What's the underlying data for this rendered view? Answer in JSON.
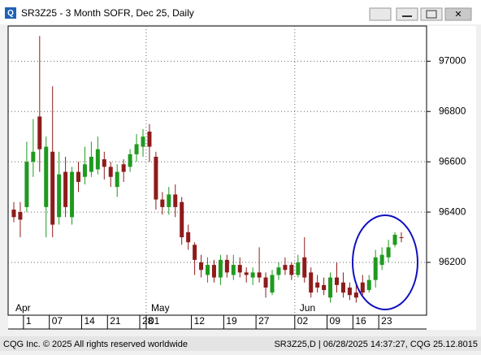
{
  "chart_data": {
    "type": "candlestick",
    "title": "SR3Z25 - 3 Month SOFR, Dec 25, Daily",
    "categories": [
      null,
      null,
      "1",
      null,
      null,
      null,
      "07",
      null,
      null,
      null,
      null,
      "14",
      null,
      null,
      null,
      "21",
      null,
      null,
      null,
      null,
      "28",
      "01",
      null,
      null,
      null,
      null,
      null,
      null,
      "12",
      null,
      null,
      null,
      null,
      "19",
      null,
      null,
      null,
      null,
      "27",
      null,
      null,
      null,
      null,
      null,
      "02",
      null,
      null,
      null,
      null,
      "09",
      null,
      null,
      null,
      "16",
      null,
      null,
      null,
      "23",
      null,
      null,
      null
    ],
    "months": [
      "Apr",
      null,
      null,
      null,
      null,
      null,
      null,
      null,
      null,
      null,
      null,
      null,
      null,
      null,
      null,
      null,
      null,
      null,
      null,
      null,
      null,
      "May",
      null,
      null,
      null,
      null,
      null,
      null,
      null,
      null,
      null,
      null,
      null,
      null,
      null,
      null,
      null,
      null,
      null,
      null,
      null,
      null,
      null,
      null,
      "Jun",
      null,
      null,
      null,
      null,
      null,
      null,
      null,
      null,
      null,
      null,
      null,
      null,
      null,
      null,
      null,
      null
    ],
    "open": [
      96410,
      96400,
      96420,
      96600,
      96780,
      96420,
      96640,
      96380,
      96560,
      96380,
      96560,
      96540,
      96560,
      96570,
      96610,
      96580,
      96500,
      96590,
      96580,
      96630,
      96660,
      96720,
      96620,
      96450,
      96420,
      96470,
      96440,
      96320,
      96270,
      96200,
      96150,
      96190,
      96140,
      96210,
      96150,
      96190,
      96160,
      96140,
      96160,
      96140,
      96080,
      96150,
      96190,
      96190,
      96150,
      96220,
      96160,
      96120,
      96110,
      96060,
      96140,
      96120,
      96100,
      96080,
      96120,
      96090,
      96130,
      96190,
      96220,
      96270,
      96300
    ],
    "high": [
      96440,
      96440,
      96680,
      96770,
      97100,
      96700,
      96900,
      96640,
      96620,
      96580,
      96600,
      96660,
      96680,
      96700,
      96640,
      96600,
      96590,
      96610,
      96650,
      96710,
      96730,
      96750,
      96640,
      96480,
      96500,
      96510,
      96460,
      96350,
      96280,
      96230,
      96220,
      96210,
      96230,
      96230,
      96230,
      96220,
      96180,
      96180,
      96260,
      96160,
      96170,
      96200,
      96220,
      96200,
      96230,
      96300,
      96180,
      96150,
      96140,
      96160,
      96200,
      96160,
      96120,
      96110,
      96150,
      96150,
      96250,
      96260,
      96290,
      96320,
      96320
    ],
    "low": [
      96360,
      96300,
      96400,
      96540,
      96560,
      96300,
      96300,
      96350,
      96380,
      96350,
      96480,
      96510,
      96540,
      96550,
      96530,
      96500,
      96460,
      96520,
      96560,
      96600,
      96620,
      96600,
      96410,
      96390,
      96390,
      96380,
      96270,
      96250,
      96150,
      96140,
      96120,
      96120,
      96110,
      96140,
      96130,
      96140,
      96120,
      96110,
      96120,
      96060,
      96070,
      96130,
      96150,
      96130,
      96140,
      96120,
      96060,
      96080,
      96070,
      96040,
      96080,
      96060,
      96050,
      96040,
      96070,
      96080,
      96100,
      96170,
      96200,
      96260,
      96280
    ],
    "close": [
      96380,
      96370,
      96600,
      96640,
      96650,
      96660,
      96350,
      96550,
      96420,
      96560,
      96520,
      96590,
      96620,
      96650,
      96580,
      96540,
      96560,
      96560,
      96630,
      96670,
      96700,
      96660,
      96450,
      96420,
      96470,
      96420,
      96300,
      96280,
      96210,
      96170,
      96190,
      96140,
      96210,
      96160,
      96190,
      96160,
      96150,
      96160,
      96140,
      96100,
      96150,
      96180,
      96170,
      96150,
      96200,
      96140,
      96080,
      96100,
      96090,
      96140,
      96110,
      96080,
      96070,
      96060,
      96080,
      96130,
      96220,
      96230,
      96260,
      96310,
      96300
    ],
    "up_color": "#1f9a1f",
    "down_color": "#8e1b1b",
    "ylim": [
      95990,
      97140
    ],
    "yticks": [
      96200,
      96400,
      96600,
      96800,
      97000
    ],
    "grid": true
  },
  "status_bar": {
    "left": "CQG Inc. © 2025 All rights reserved worldwide",
    "right": "SR3Z25,D | 06/28/2025 14:37:27, CQG 25.12.8015"
  }
}
